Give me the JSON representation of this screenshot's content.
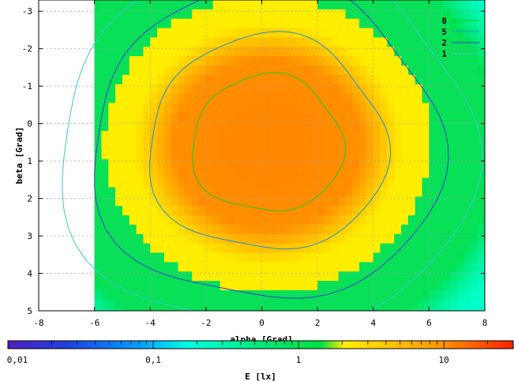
{
  "chart_data": {
    "type": "heatmap",
    "xlabel": "alpha [Grad]",
    "ylabel": "beta [Grad]",
    "xlim": [
      -8,
      8
    ],
    "ylim": [
      5,
      -3.3
    ],
    "x_ticks": [
      "-8",
      "-6",
      "-4",
      "-2",
      "0",
      "2",
      "4",
      "6",
      "8"
    ],
    "y_ticks": [
      "-3",
      "-2",
      "-1",
      "0",
      "1",
      "2",
      "3",
      "4",
      "5"
    ],
    "data_x_range": [
      -6,
      8
    ],
    "grid": true,
    "colorbar": {
      "label": "E [lx]",
      "scale": "log",
      "range": [
        0.01,
        30
      ],
      "ticks": [
        "0,01",
        "0,1",
        "1",
        "10"
      ]
    },
    "contour_levels": [
      {
        "label": "8",
        "value": 8,
        "color": "#1ec81e"
      },
      {
        "label": "5",
        "value": 5,
        "color": "#1e90d0"
      },
      {
        "label": "2",
        "value": 2,
        "color": "#3c3cc8"
      },
      {
        "label": "1",
        "value": 1,
        "color": "#3cc8c8"
      }
    ],
    "colors": {
      "c_low": "#00ffcc",
      "c_mid": "#00e050",
      "c_yellow": "#ffee00",
      "c_orange": "#ff8800",
      "c_red": "#ff2000"
    }
  }
}
